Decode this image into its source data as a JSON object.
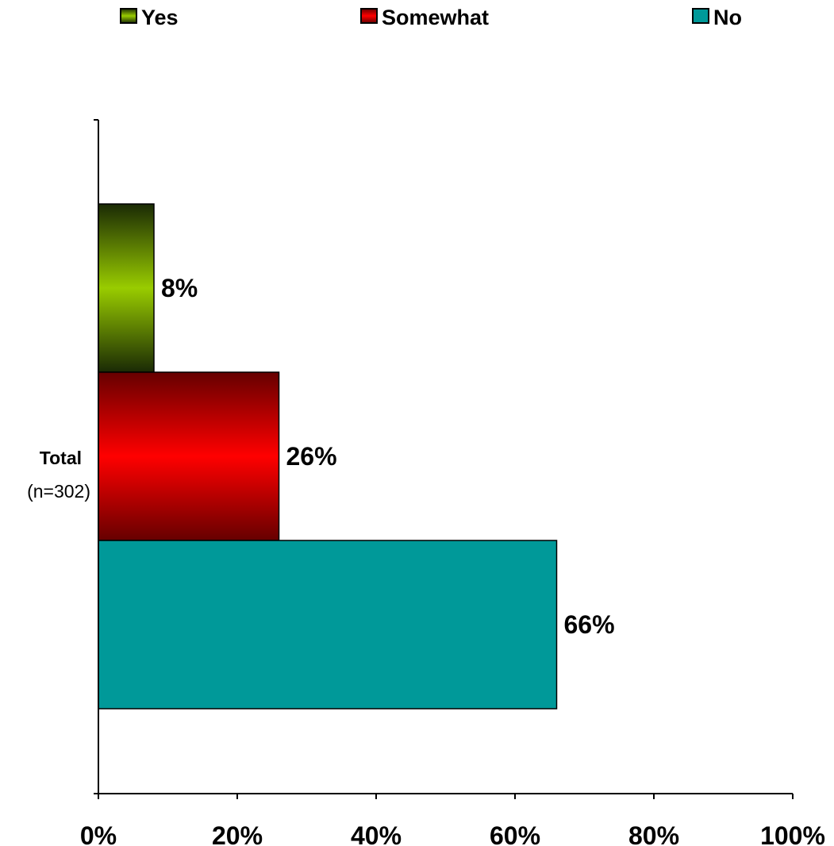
{
  "chart_data": {
    "type": "bar",
    "orientation": "horizontal",
    "categories": [
      "Total"
    ],
    "category_labels": [
      {
        "name": "Total",
        "sub": "(n=302)"
      }
    ],
    "series": [
      {
        "name": "Yes",
        "values": [
          8
        ],
        "label": "8%",
        "color_light": "#99cc00",
        "color_dark": "#1a2a05",
        "gradient": true
      },
      {
        "name": "Somewhat",
        "values": [
          26
        ],
        "label": "26%",
        "color_light": "#ff0000",
        "color_dark": "#660000",
        "gradient": true
      },
      {
        "name": "No",
        "values": [
          66
        ],
        "label": "66%",
        "color_light": "#009999",
        "color_dark": "#009999",
        "gradient": false
      }
    ],
    "xlim": [
      0,
      100
    ],
    "x_ticks": [
      0,
      20,
      40,
      60,
      80,
      100
    ],
    "x_tick_labels": [
      "0%",
      "20%",
      "40%",
      "60%",
      "80%",
      "100%"
    ],
    "title": "",
    "xlabel": "",
    "ylabel": "",
    "legend_position": "top",
    "grid": false
  }
}
